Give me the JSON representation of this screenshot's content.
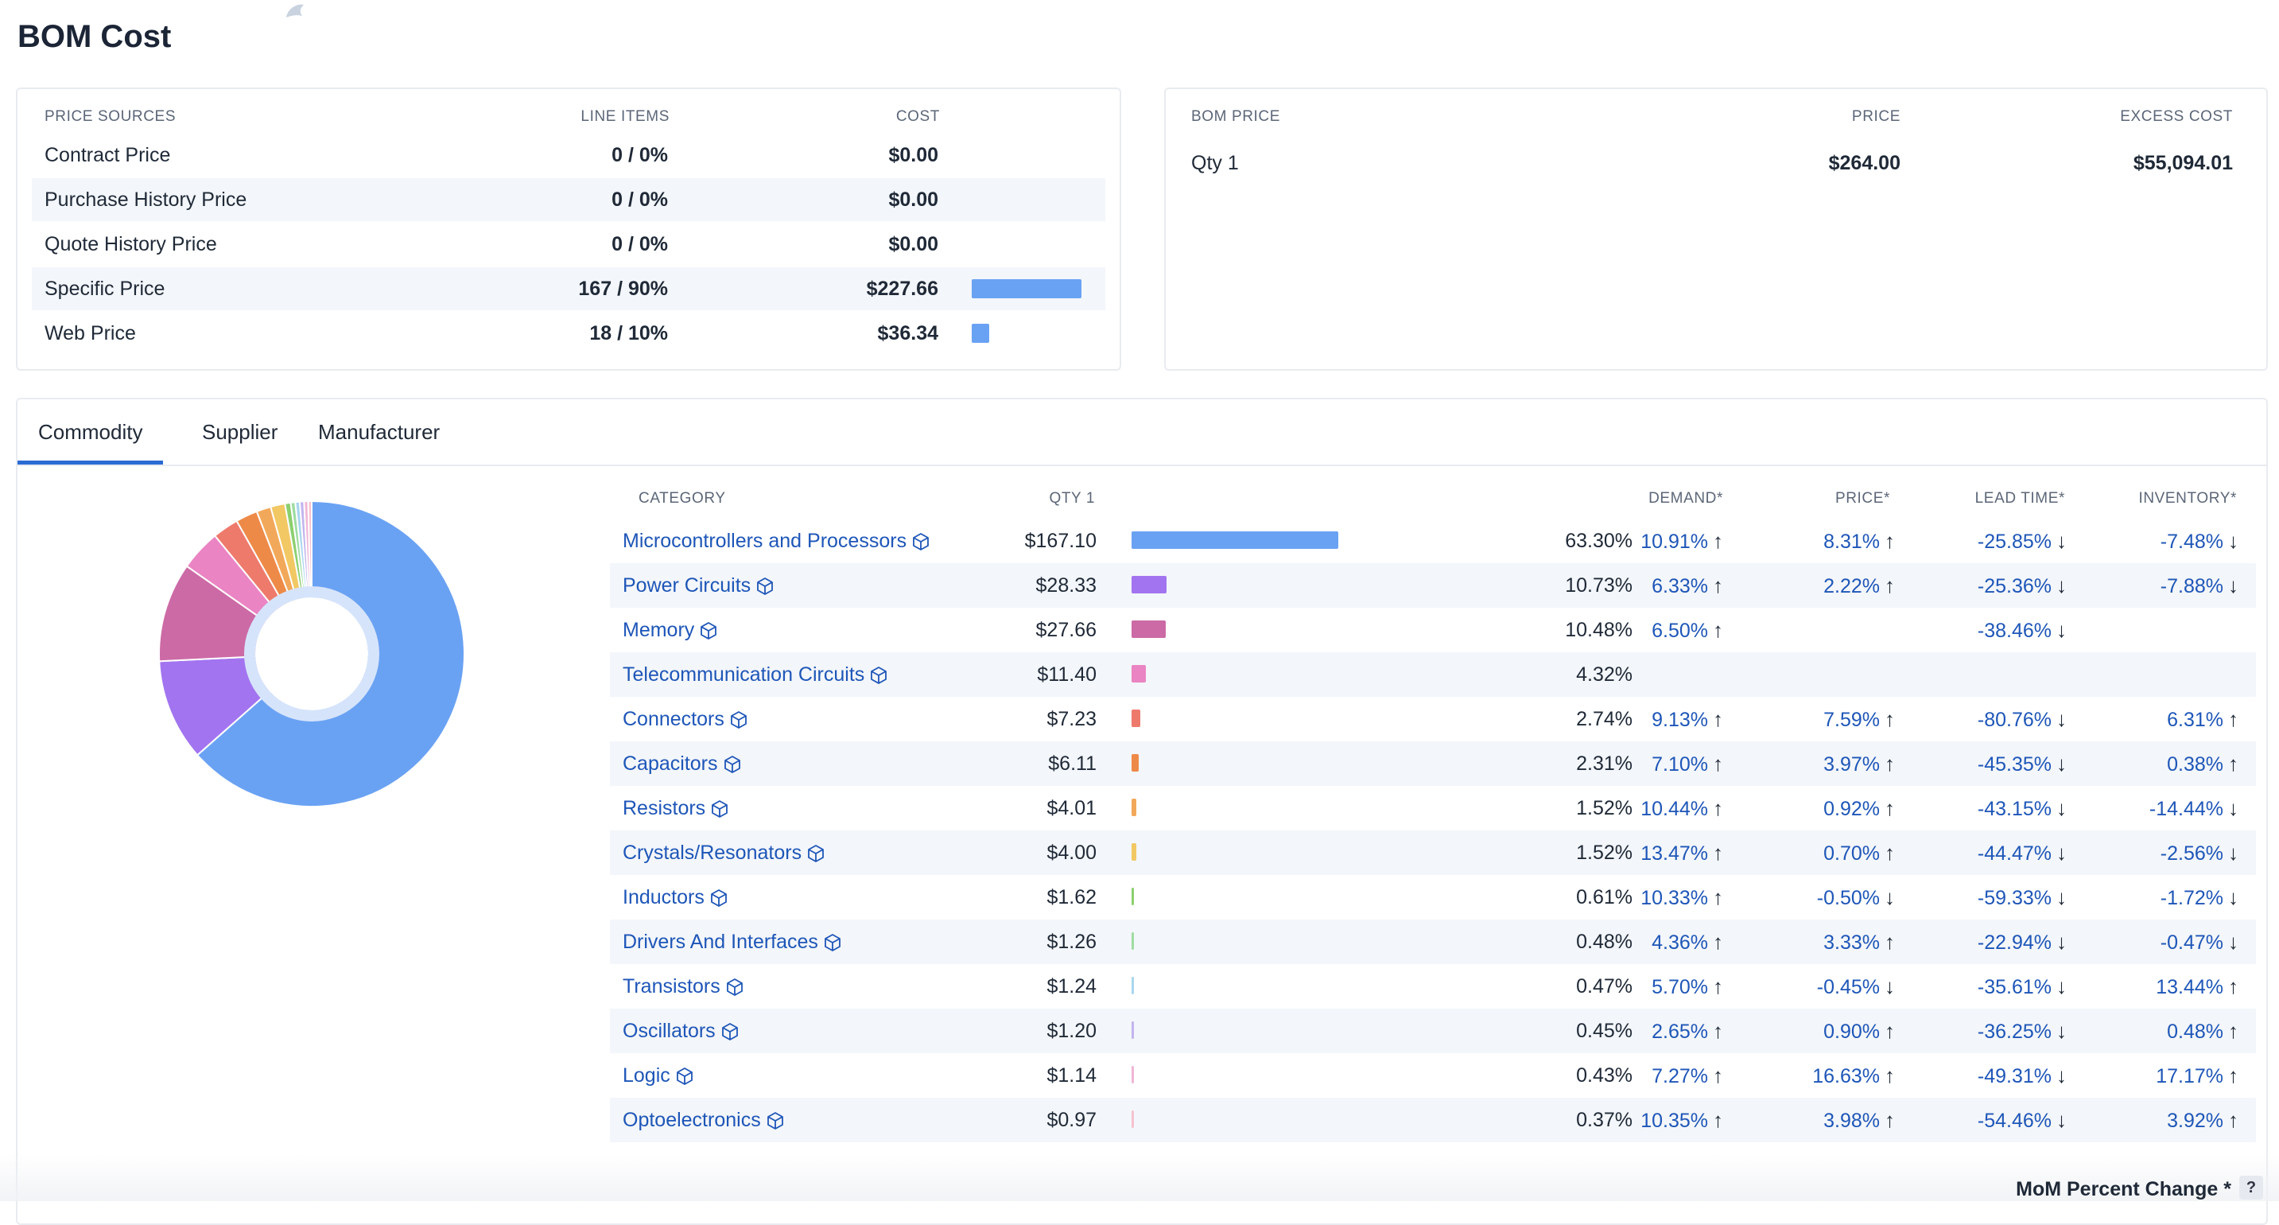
{
  "page": {
    "title": "BOM Cost"
  },
  "price_sources": {
    "headers": {
      "source": "PRICE SOURCES",
      "line_items": "LINE ITEMS",
      "cost": "COST"
    },
    "rows": [
      {
        "name": "Contract Price",
        "line_items": "0 / 0%",
        "cost": "$0.00",
        "share": 0
      },
      {
        "name": "Purchase History Price",
        "line_items": "0 / 0%",
        "cost": "$0.00",
        "share": 0
      },
      {
        "name": "Quote History Price",
        "line_items": "0 / 0%",
        "cost": "$0.00",
        "share": 0
      },
      {
        "name": "Specific Price",
        "line_items": "167 / 90%",
        "cost": "$227.66",
        "share": 0.862
      },
      {
        "name": "Web Price",
        "line_items": "18 / 10%",
        "cost": "$36.34",
        "share": 0.138
      }
    ],
    "bar_color": "#6aa2f3"
  },
  "bom_price": {
    "headers": {
      "label": "BOM PRICE",
      "price": "PRICE",
      "excess": "EXCESS COST"
    },
    "rows": [
      {
        "label": "Qty 1",
        "price": "$264.00",
        "excess": "$55,094.01"
      }
    ]
  },
  "tabs": [
    {
      "label": "Commodity",
      "active": true
    },
    {
      "label": "Supplier",
      "active": false
    },
    {
      "label": "Manufacturer",
      "active": false
    }
  ],
  "commodity": {
    "headers": {
      "category": "CATEGORY",
      "qty": "QTY 1",
      "demand": "DEMAND*",
      "price": "PRICE*",
      "lead_time": "LEAD TIME*",
      "inventory": "INVENTORY*"
    },
    "rows": [
      {
        "category": "Microcontrollers and Processors",
        "cost": "$167.10",
        "pct": "63.30%",
        "share": 63.3,
        "color": "#6aa2f3",
        "demand": "10.91%",
        "demand_dir": "up",
        "price": "8.31%",
        "price_dir": "up",
        "lead": "-25.85%",
        "lead_dir": "down",
        "inventory": "-7.48%",
        "inventory_dir": "down"
      },
      {
        "category": "Power Circuits",
        "cost": "$28.33",
        "pct": "10.73%",
        "share": 10.73,
        "color": "#a274f0",
        "demand": "6.33%",
        "demand_dir": "up",
        "price": "2.22%",
        "price_dir": "up",
        "lead": "-25.36%",
        "lead_dir": "down",
        "inventory": "-7.88%",
        "inventory_dir": "down"
      },
      {
        "category": "Memory",
        "cost": "$27.66",
        "pct": "10.48%",
        "share": 10.48,
        "color": "#cc6aa6",
        "demand": "6.50%",
        "demand_dir": "up",
        "price": "",
        "price_dir": "",
        "lead": "-38.46%",
        "lead_dir": "down",
        "inventory": "",
        "inventory_dir": ""
      },
      {
        "category": "Telecommunication Circuits",
        "cost": "$11.40",
        "pct": "4.32%",
        "share": 4.32,
        "color": "#ea84c3",
        "demand": "",
        "demand_dir": "",
        "price": "",
        "price_dir": "",
        "lead": "",
        "lead_dir": "",
        "inventory": "",
        "inventory_dir": ""
      },
      {
        "category": "Connectors",
        "cost": "$7.23",
        "pct": "2.74%",
        "share": 2.74,
        "color": "#ee7a6c",
        "demand": "9.13%",
        "demand_dir": "up",
        "price": "7.59%",
        "price_dir": "up",
        "lead": "-80.76%",
        "lead_dir": "down",
        "inventory": "6.31%",
        "inventory_dir": "up"
      },
      {
        "category": "Capacitors",
        "cost": "$6.11",
        "pct": "2.31%",
        "share": 2.31,
        "color": "#ee8a48",
        "demand": "7.10%",
        "demand_dir": "up",
        "price": "3.97%",
        "price_dir": "up",
        "lead": "-45.35%",
        "lead_dir": "down",
        "inventory": "0.38%",
        "inventory_dir": "up"
      },
      {
        "category": "Resistors",
        "cost": "$4.01",
        "pct": "1.52%",
        "share": 1.52,
        "color": "#f2a85a",
        "demand": "10.44%",
        "demand_dir": "up",
        "price": "0.92%",
        "price_dir": "up",
        "lead": "-43.15%",
        "lead_dir": "down",
        "inventory": "-14.44%",
        "inventory_dir": "down"
      },
      {
        "category": "Crystals/Resonators",
        "cost": "$4.00",
        "pct": "1.52%",
        "share": 1.52,
        "color": "#f2c864",
        "demand": "13.47%",
        "demand_dir": "up",
        "price": "0.70%",
        "price_dir": "up",
        "lead": "-44.47%",
        "lead_dir": "down",
        "inventory": "-2.56%",
        "inventory_dir": "down"
      },
      {
        "category": "Inductors",
        "cost": "$1.62",
        "pct": "0.61%",
        "share": 0.61,
        "color": "#8ccf6e",
        "demand": "10.33%",
        "demand_dir": "up",
        "price": "-0.50%",
        "price_dir": "down",
        "lead": "-59.33%",
        "lead_dir": "down",
        "inventory": "-1.72%",
        "inventory_dir": "down"
      },
      {
        "category": "Drivers And Interfaces",
        "cost": "$1.26",
        "pct": "0.48%",
        "share": 0.48,
        "color": "#9fdca2",
        "demand": "4.36%",
        "demand_dir": "up",
        "price": "3.33%",
        "price_dir": "up",
        "lead": "-22.94%",
        "lead_dir": "down",
        "inventory": "-0.47%",
        "inventory_dir": "down"
      },
      {
        "category": "Transistors",
        "cost": "$1.24",
        "pct": "0.47%",
        "share": 0.47,
        "color": "#a9d6ee",
        "demand": "5.70%",
        "demand_dir": "up",
        "price": "-0.45%",
        "price_dir": "down",
        "lead": "-35.61%",
        "lead_dir": "down",
        "inventory": "13.44%",
        "inventory_dir": "up"
      },
      {
        "category": "Oscillators",
        "cost": "$1.20",
        "pct": "0.45%",
        "share": 0.45,
        "color": "#c2b4ee",
        "demand": "2.65%",
        "demand_dir": "up",
        "price": "0.90%",
        "price_dir": "up",
        "lead": "-36.25%",
        "lead_dir": "down",
        "inventory": "0.48%",
        "inventory_dir": "up"
      },
      {
        "category": "Logic",
        "cost": "$1.14",
        "pct": "0.43%",
        "share": 0.43,
        "color": "#f0b6d6",
        "demand": "7.27%",
        "demand_dir": "up",
        "price": "16.63%",
        "price_dir": "up",
        "lead": "-49.31%",
        "lead_dir": "down",
        "inventory": "17.17%",
        "inventory_dir": "up"
      },
      {
        "category": "Optoelectronics",
        "cost": "$0.97",
        "pct": "0.37%",
        "share": 0.37,
        "color": "#f6c2cf",
        "demand": "10.35%",
        "demand_dir": "up",
        "price": "3.98%",
        "price_dir": "up",
        "lead": "-54.46%",
        "lead_dir": "down",
        "inventory": "3.92%",
        "inventory_dir": "up"
      }
    ]
  },
  "footer": {
    "label": "MoM Percent Change *",
    "help": "?"
  }
}
